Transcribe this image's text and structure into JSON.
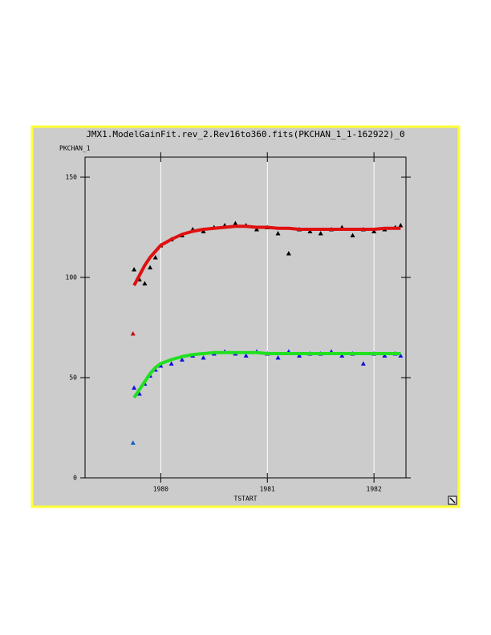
{
  "chart_data": {
    "type": "scatter",
    "title": "JMX1.ModelGainFit.rev_2.Rev16to360.fits(PKCHAN_1_1-162922)_0",
    "y_label": "PKCHAN_1",
    "x_label": "TSTART",
    "xlim": [
      1979.29,
      1982.3
    ],
    "xticks": [
      1980,
      1981,
      1982
    ],
    "ylim": [
      0,
      160
    ],
    "yticks": [
      0,
      50,
      100,
      150
    ],
    "xgrid": true,
    "x": [
      1979.75,
      1979.8,
      1979.85,
      1979.9,
      1979.95,
      1980.0,
      1980.1,
      1980.2,
      1980.3,
      1980.4,
      1980.5,
      1980.6,
      1980.7,
      1980.8,
      1980.9,
      1981.0,
      1981.1,
      1981.2,
      1981.3,
      1981.4,
      1981.5,
      1981.6,
      1981.7,
      1981.8,
      1981.9,
      1982.0,
      1982.1,
      1982.2,
      1982.25
    ],
    "series": [
      {
        "color": "#000000",
        "marker": "triangle",
        "values": [
          104,
          99,
          97,
          105,
          110,
          116,
          119,
          121,
          124,
          123,
          125,
          126,
          127,
          126,
          124,
          125,
          122,
          112,
          124,
          123,
          122,
          124,
          125,
          121,
          124,
          123,
          124,
          125,
          126
        ]
      },
      {
        "color": "#1010e0",
        "marker": "triangle",
        "values": [
          45,
          42,
          47,
          51,
          54,
          56,
          57,
          59,
          61,
          60,
          62,
          63,
          62,
          61,
          63,
          62,
          60,
          63,
          61,
          62,
          62,
          63,
          61,
          62,
          57,
          62,
          61,
          62,
          61
        ]
      },
      {
        "color": "#e01010",
        "marker": "line",
        "values": [
          96,
          101,
          106,
          110,
          113,
          116,
          119,
          121.5,
          123,
          124,
          124.5,
          125,
          125.5,
          125.5,
          125,
          125,
          124.5,
          124.5,
          124,
          124,
          124,
          124,
          124,
          124,
          124,
          124,
          124.5,
          124.5,
          124.5
        ]
      },
      {
        "color": "#20e020",
        "marker": "line",
        "values": [
          40,
          44,
          48,
          52,
          55,
          57,
          59,
          60.5,
          61.5,
          62,
          62.5,
          62.5,
          62.5,
          62.5,
          62.5,
          62,
          62,
          62,
          62,
          62,
          62,
          62,
          62,
          62,
          62,
          62,
          62,
          62,
          62
        ]
      },
      {
        "color": "#c01010",
        "marker": "triangle",
        "x": [
          1979.74
        ],
        "values": [
          72
        ]
      },
      {
        "color": "#1060c0",
        "marker": "triangle",
        "x": [
          1979.74
        ],
        "values": [
          17.5
        ]
      }
    ]
  }
}
